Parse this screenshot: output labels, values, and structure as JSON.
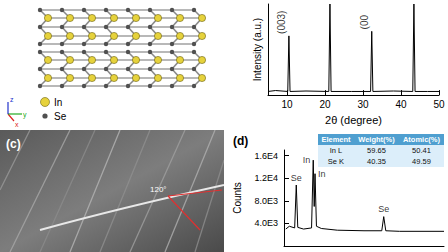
{
  "structure": {
    "legend": [
      {
        "label": "In",
        "color": "#e6d23c"
      },
      {
        "label": "Se",
        "color": "#505050"
      }
    ],
    "axes": [
      "x",
      "y",
      "z"
    ]
  },
  "sem": {
    "label": "(c)",
    "annotation": "120°"
  },
  "chart_data": [
    {
      "type": "line",
      "xlabel": "2θ (degree)",
      "ylabel": "Intensity (a.u.)",
      "x": [
        5,
        7,
        10.2,
        10.5,
        10.8,
        15,
        21.0,
        21.3,
        21.6,
        27,
        32.0,
        32.3,
        32.6,
        38,
        43.1,
        43.4,
        43.7,
        47,
        50
      ],
      "values": [
        4,
        5,
        4,
        65,
        4,
        4.5,
        4,
        100,
        4,
        4,
        4,
        70,
        4,
        4.5,
        4,
        100,
        4,
        4,
        4
      ],
      "color": "#000000",
      "xlim": [
        5,
        50
      ],
      "xticks": [
        10,
        20,
        30,
        40,
        50
      ],
      "ylim": [
        0,
        100
      ],
      "tick_labels": "x",
      "annotations": [
        {
          "text": "(003)",
          "x": 8.5,
          "y": 80
        },
        {
          "text": "(00",
          "x": 30.5,
          "y": 80
        }
      ]
    },
    {
      "type": "line",
      "title": "(d)",
      "ylabel": "Counts",
      "x": [
        0.2,
        0.6,
        1.2,
        1.38,
        1.55,
        2.2,
        3.1,
        3.29,
        3.4,
        3.49,
        3.65,
        4.2,
        6,
        9,
        11.0,
        11.22,
        11.45,
        13,
        18
      ],
      "values": [
        3000,
        3500,
        3200,
        10800,
        3300,
        3000,
        3200,
        15200,
        7000,
        12800,
        3500,
        3100,
        2800,
        2700,
        2700,
        5200,
        2700,
        2600,
        2600
      ],
      "color": "#000000",
      "xlim": [
        0,
        18
      ],
      "ylim": [
        0,
        17000
      ],
      "yticks": [
        {
          "value": 4000,
          "label": "4.0E3"
        },
        {
          "value": 8000,
          "label": "8.0E3"
        },
        {
          "value": 12000,
          "label": "1.2E4"
        },
        {
          "value": 16000,
          "label": "1.6E4"
        }
      ],
      "tick_labels": "y",
      "annotations": [
        {
          "text": "Se",
          "x": 1.38,
          "y": 10800
        },
        {
          "text": "In",
          "x": 3.29,
          "y": 15200
        },
        {
          "text": "In",
          "x": 3.49,
          "y": 12800
        },
        {
          "text": "Se",
          "x": 11.22,
          "y": 5200
        }
      ],
      "table": {
        "header": [
          "Element",
          "Weight(%)",
          "Atomic(%)"
        ],
        "rows": [
          [
            "In L",
            59.65,
            50.41
          ],
          [
            "Se K",
            40.35,
            49.59
          ]
        ]
      }
    }
  ]
}
